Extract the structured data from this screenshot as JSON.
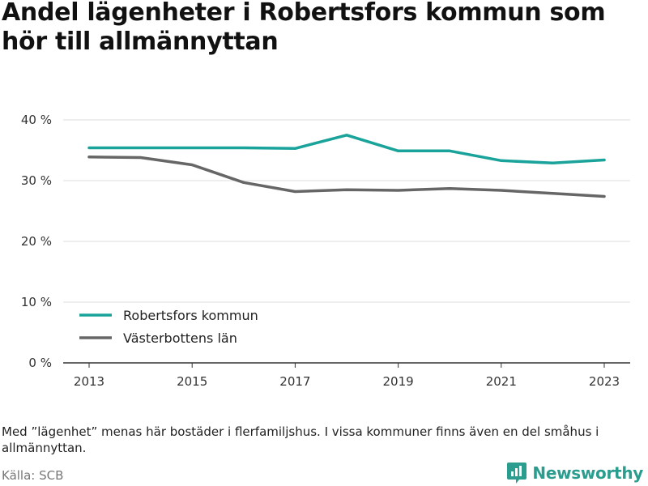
{
  "header": {
    "title": "Andel lägenheter i Robertsfors kommun som hör till allmännyttan"
  },
  "footer": {
    "note": "Med ”lägenhet” menas här bostäder i flerfamiljshus. I vissa kommuner finns även en del småhus i allmännyttan.",
    "source": "Källa: SCB",
    "brand": "Newsworthy",
    "brand_icon": "newsworthy-logo-icon"
  },
  "colors": {
    "primary": "#1aa39a",
    "secondary": "#666666",
    "grid": "#dddddd",
    "axis": "#333333",
    "brand": "#2a9d8f"
  },
  "chart_data": {
    "type": "line",
    "x": [
      2013,
      2014,
      2015,
      2016,
      2017,
      2018,
      2019,
      2020,
      2021,
      2022,
      2023
    ],
    "series": [
      {
        "name": "Robertsfors kommun",
        "color": "#1aa39a",
        "values": [
          35.4,
          35.4,
          35.4,
          35.4,
          35.3,
          37.5,
          34.9,
          34.9,
          33.3,
          32.9,
          33.4
        ]
      },
      {
        "name": "Västerbottens län",
        "color": "#666666",
        "values": [
          33.9,
          33.8,
          32.6,
          29.7,
          28.2,
          28.5,
          28.4,
          28.7,
          28.4,
          27.9,
          27.4
        ]
      }
    ],
    "xticks": [
      2013,
      2015,
      2017,
      2019,
      2021,
      2023
    ],
    "xtick_labels": [
      "2013",
      "2015",
      "2017",
      "2019",
      "2021",
      "2023"
    ],
    "yticks": [
      0,
      10,
      20,
      30,
      40
    ],
    "ytick_labels": [
      "0 %",
      "10 %",
      "20 %",
      "30 %",
      "40 %"
    ],
    "xlim": [
      2013,
      2023
    ],
    "ylim": [
      0,
      40
    ],
    "grid": true,
    "legend": "bottom-left",
    "xlabel": "",
    "ylabel": ""
  }
}
